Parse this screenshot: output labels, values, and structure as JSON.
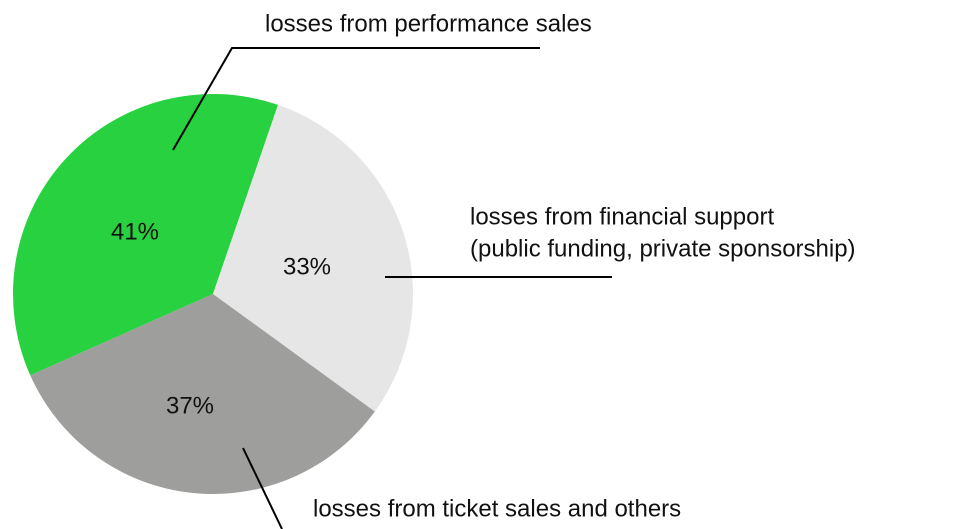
{
  "chart_data": {
    "type": "pie",
    "categories": [
      [
        "losses from performance sales"
      ],
      [
        "losses from financial support",
        "(public funding, private sponsorship)"
      ],
      [
        "losses from ticket sales and others"
      ]
    ],
    "values": [
      41,
      33,
      37
    ],
    "value_labels": [
      "41%",
      "33%",
      "37%"
    ],
    "colors": [
      "#28d13f",
      "#e6e6e6",
      "#9e9e9c"
    ]
  }
}
